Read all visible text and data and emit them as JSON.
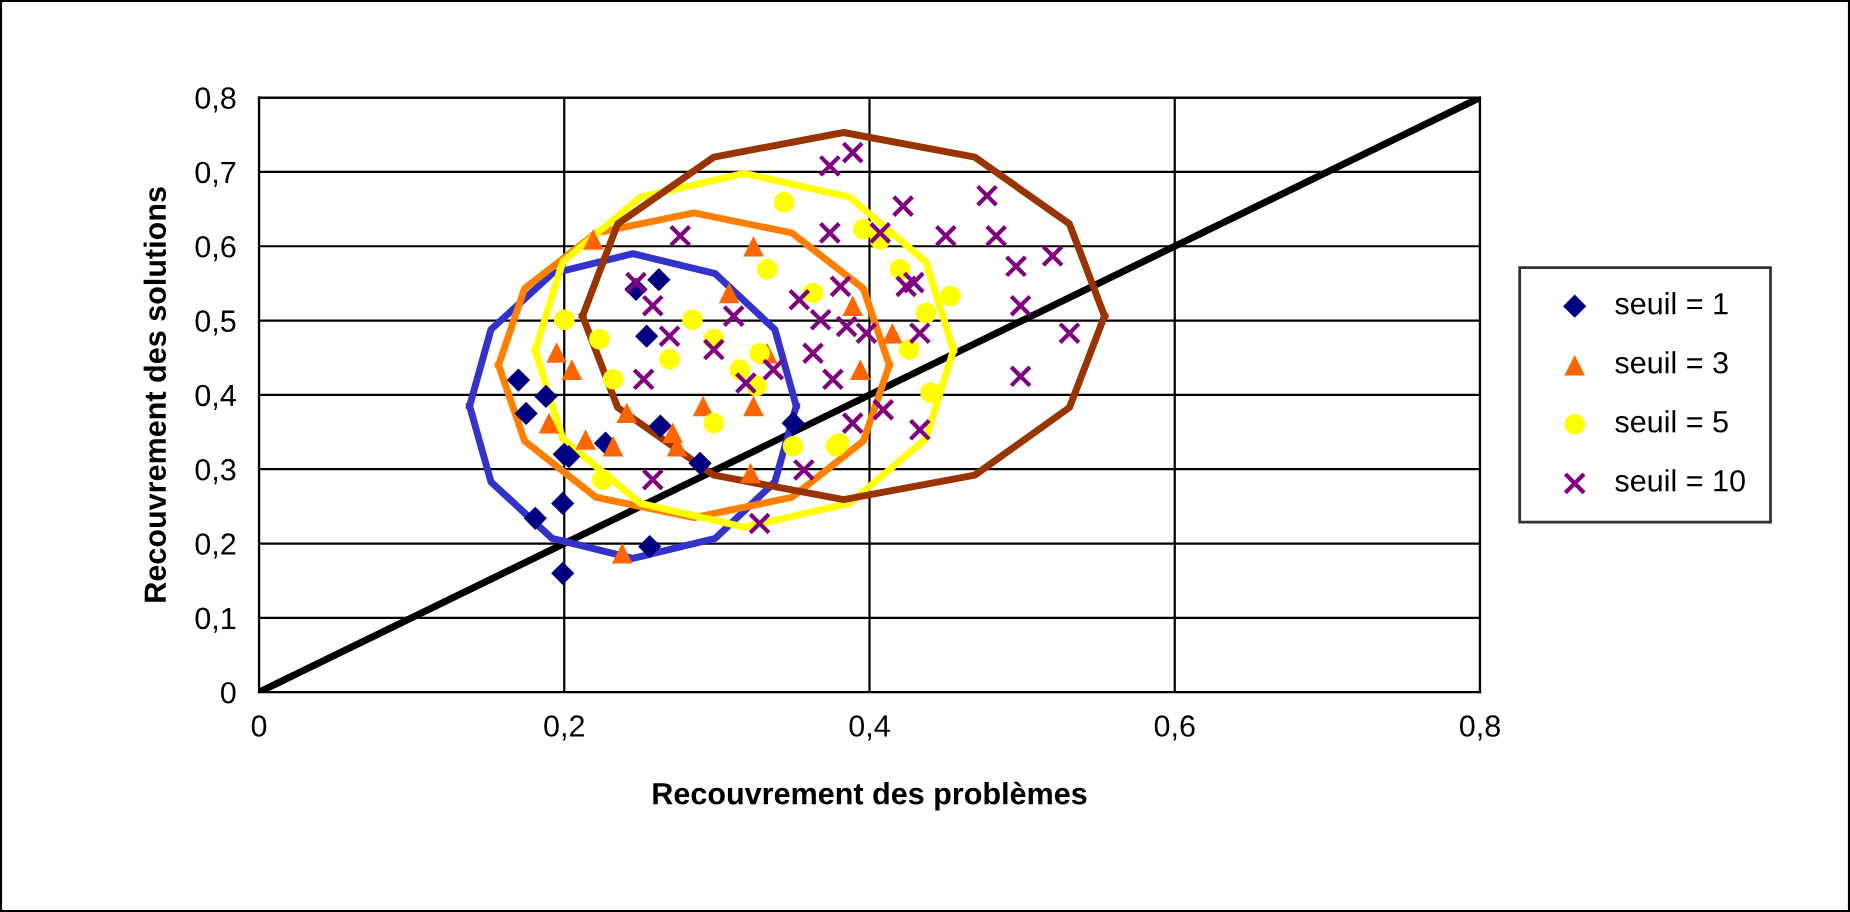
{
  "chart_data": {
    "type": "scatter",
    "xlabel": "Recouvrement des problèmes",
    "ylabel": "Recouvrement des solutions",
    "xlim": [
      0,
      0.8
    ],
    "ylim": [
      0,
      0.8
    ],
    "xticks": [
      {
        "value": 0,
        "label": "0"
      },
      {
        "value": 0.2,
        "label": "0,2"
      },
      {
        "value": 0.4,
        "label": "0,4"
      },
      {
        "value": 0.6,
        "label": "0,6"
      },
      {
        "value": 0.8,
        "label": "0,8"
      }
    ],
    "yticks": [
      {
        "value": 0,
        "label": "0"
      },
      {
        "value": 0.1,
        "label": "0,1"
      },
      {
        "value": 0.2,
        "label": "0,2"
      },
      {
        "value": 0.3,
        "label": "0,3"
      },
      {
        "value": 0.4,
        "label": "0,4"
      },
      {
        "value": 0.5,
        "label": "0,5"
      },
      {
        "value": 0.6,
        "label": "0,6"
      },
      {
        "value": 0.7,
        "label": "0,7"
      },
      {
        "value": 0.8,
        "label": "0,8"
      }
    ],
    "grid": true,
    "legend": "right",
    "series": [
      {
        "name": "seuil = 1",
        "marker": "diamond",
        "color": "#000080",
        "x": [
          0.17,
          0.175,
          0.188,
          0.203,
          0.181,
          0.199,
          0.199,
          0.254,
          0.262,
          0.247,
          0.256,
          0.227,
          0.263,
          0.289,
          0.2,
          0.35
        ],
        "values": [
          0.42,
          0.375,
          0.398,
          0.317,
          0.234,
          0.16,
          0.254,
          0.479,
          0.555,
          0.542,
          0.196,
          0.335,
          0.358,
          0.308,
          0.32,
          0.362
        ]
      },
      {
        "name": "seuil = 3",
        "marker": "triangle",
        "color": "#ff6600",
        "x": [
          0.219,
          0.195,
          0.19,
          0.214,
          0.232,
          0.238,
          0.205,
          0.271,
          0.324,
          0.308,
          0.241,
          0.274,
          0.322,
          0.324,
          0.291,
          0.394,
          0.333,
          0.389,
          0.415
        ],
        "values": [
          0.609,
          0.457,
          0.362,
          0.34,
          0.331,
          0.187,
          0.434,
          0.349,
          0.6,
          0.537,
          0.376,
          0.331,
          0.295,
          0.385,
          0.385,
          0.434,
          0.456,
          0.52,
          0.483
        ]
      },
      {
        "name": "seuil = 5",
        "marker": "circle",
        "color": "#ffff00",
        "x": [
          0.344,
          0.333,
          0.298,
          0.284,
          0.223,
          0.232,
          0.269,
          0.298,
          0.225,
          0.315,
          0.328,
          0.363,
          0.378,
          0.396,
          0.42,
          0.326,
          0.2,
          0.407,
          0.453,
          0.437,
          0.426,
          0.44,
          0.38,
          0.35
        ],
        "values": [
          0.659,
          0.569,
          0.475,
          0.501,
          0.475,
          0.421,
          0.448,
          0.362,
          0.286,
          0.434,
          0.456,
          0.537,
          0.331,
          0.623,
          0.569,
          0.412,
          0.501,
          0.609,
          0.533,
          0.51,
          0.461,
          0.403,
          0.335,
          0.331
        ]
      },
      {
        "name": "seuil = 10",
        "marker": "cross",
        "color": "#800080",
        "x": [
          0.389,
          0.374,
          0.422,
          0.276,
          0.374,
          0.407,
          0.247,
          0.258,
          0.269,
          0.298,
          0.311,
          0.319,
          0.337,
          0.354,
          0.368,
          0.381,
          0.385,
          0.398,
          0.363,
          0.376,
          0.258,
          0.357,
          0.328,
          0.252,
          0.424,
          0.477,
          0.45,
          0.483,
          0.496,
          0.52,
          0.499,
          0.531,
          0.499,
          0.433,
          0.433,
          0.409,
          0.389,
          0.429
        ],
        "values": [
          0.726,
          0.708,
          0.654,
          0.614,
          0.618,
          0.618,
          0.551,
          0.52,
          0.479,
          0.461,
          0.506,
          0.416,
          0.434,
          0.528,
          0.501,
          0.546,
          0.492,
          0.483,
          0.456,
          0.421,
          0.286,
          0.299,
          0.227,
          0.421,
          0.546,
          0.668,
          0.614,
          0.614,
          0.573,
          0.587,
          0.52,
          0.483,
          0.425,
          0.483,
          0.353,
          0.38,
          0.362,
          0.551
        ]
      },
      {
        "type": "line",
        "color": "#000000",
        "x": [
          0,
          0.8
        ],
        "values": [
          0,
          0.8
        ]
      },
      {
        "type": "line",
        "color": "#3333cc",
        "x": [
          0.138,
          0.152,
          0.192,
          0.245,
          0.299,
          0.338,
          0.352
        ],
        "values": [
          0.385,
          0.488,
          0.563,
          0.59,
          0.563,
          0.488,
          0.385
        ]
      },
      {
        "type": "line",
        "color": "#3333cc",
        "x": [
          0.138,
          0.152,
          0.192,
          0.245,
          0.299,
          0.338,
          0.352
        ],
        "values": [
          0.385,
          0.283,
          0.207,
          0.18,
          0.207,
          0.283,
          0.385
        ]
      },
      {
        "type": "line",
        "color": "#ff8000",
        "x": [
          0.157,
          0.174,
          0.221,
          0.285,
          0.349,
          0.396,
          0.413
        ],
        "values": [
          0.44,
          0.543,
          0.618,
          0.645,
          0.618,
          0.543,
          0.44
        ]
      },
      {
        "type": "line",
        "color": "#ff8000",
        "x": [
          0.157,
          0.174,
          0.221,
          0.285,
          0.349,
          0.396,
          0.413
        ],
        "values": [
          0.44,
          0.338,
          0.262,
          0.235,
          0.262,
          0.338,
          0.44
        ]
      },
      {
        "type": "line",
        "color": "#ffff00",
        "x": [
          0.181,
          0.199,
          0.25,
          0.318,
          0.387,
          0.437,
          0.455
        ],
        "values": [
          0.46,
          0.579,
          0.666,
          0.698,
          0.666,
          0.579,
          0.46
        ]
      },
      {
        "type": "line",
        "color": "#ffff00",
        "x": [
          0.181,
          0.199,
          0.25,
          0.318,
          0.387,
          0.437,
          0.455
        ],
        "values": [
          0.46,
          0.341,
          0.254,
          0.222,
          0.254,
          0.341,
          0.46
        ]
      },
      {
        "type": "line",
        "color": "#993300",
        "x": [
          0.212,
          0.235,
          0.298,
          0.383,
          0.469,
          0.531,
          0.554
        ],
        "values": [
          0.506,
          0.63,
          0.72,
          0.753,
          0.72,
          0.63,
          0.506
        ]
      },
      {
        "type": "line",
        "color": "#993300",
        "x": [
          0.212,
          0.235,
          0.298,
          0.383,
          0.469,
          0.531,
          0.554
        ],
        "values": [
          0.506,
          0.383,
          0.292,
          0.259,
          0.292,
          0.383,
          0.506
        ]
      }
    ]
  }
}
